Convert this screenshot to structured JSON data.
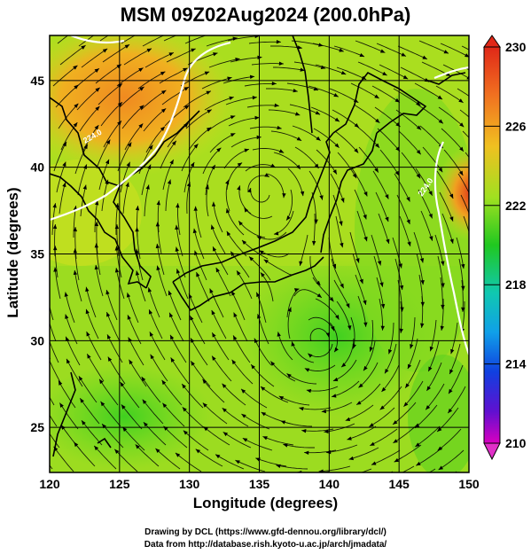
{
  "title": "MSM 09Z02Aug2024 (200.0hPa)",
  "map": {
    "xlabel": "Longitude (degrees)",
    "ylabel": "Latitude  (degrees)",
    "xlim": [
      120,
      150
    ],
    "ylim": [
      22.4,
      47.6
    ],
    "xticks": [
      120,
      125,
      130,
      135,
      140,
      145,
      150
    ],
    "yticks": [
      25,
      30,
      35,
      40,
      45
    ],
    "contours": [
      {
        "label": "224.0",
        "lon": 124.4,
        "lat": 42.3
      },
      {
        "label": "224.0",
        "lon": 147.6,
        "lat": 39.6
      }
    ],
    "vortices": [
      {
        "name": "anticyclone-japan-sea",
        "lon": 135.0,
        "lat": 39.0
      },
      {
        "name": "anticyclone-south-of-japan",
        "lon": 139.5,
        "lat": 29.5
      }
    ]
  },
  "colorbar": {
    "ticks": [
      "230",
      "226",
      "222",
      "218",
      "214",
      "210"
    ],
    "range": [
      210,
      230
    ],
    "colors": [
      "#d000c8",
      "#6a00d8",
      "#1030e0",
      "#10a8e8",
      "#10d0a0",
      "#20c820",
      "#80e020",
      "#c8e820",
      "#f0c020",
      "#f08020",
      "#e03020"
    ]
  },
  "credits": {
    "line1": "Drawing by DCL (https://www.gfd-dennou.org/library/dcl/)",
    "line2": "Data from http://database.rish.kyoto-u.ac.jp/arch/jmadata/"
  }
}
